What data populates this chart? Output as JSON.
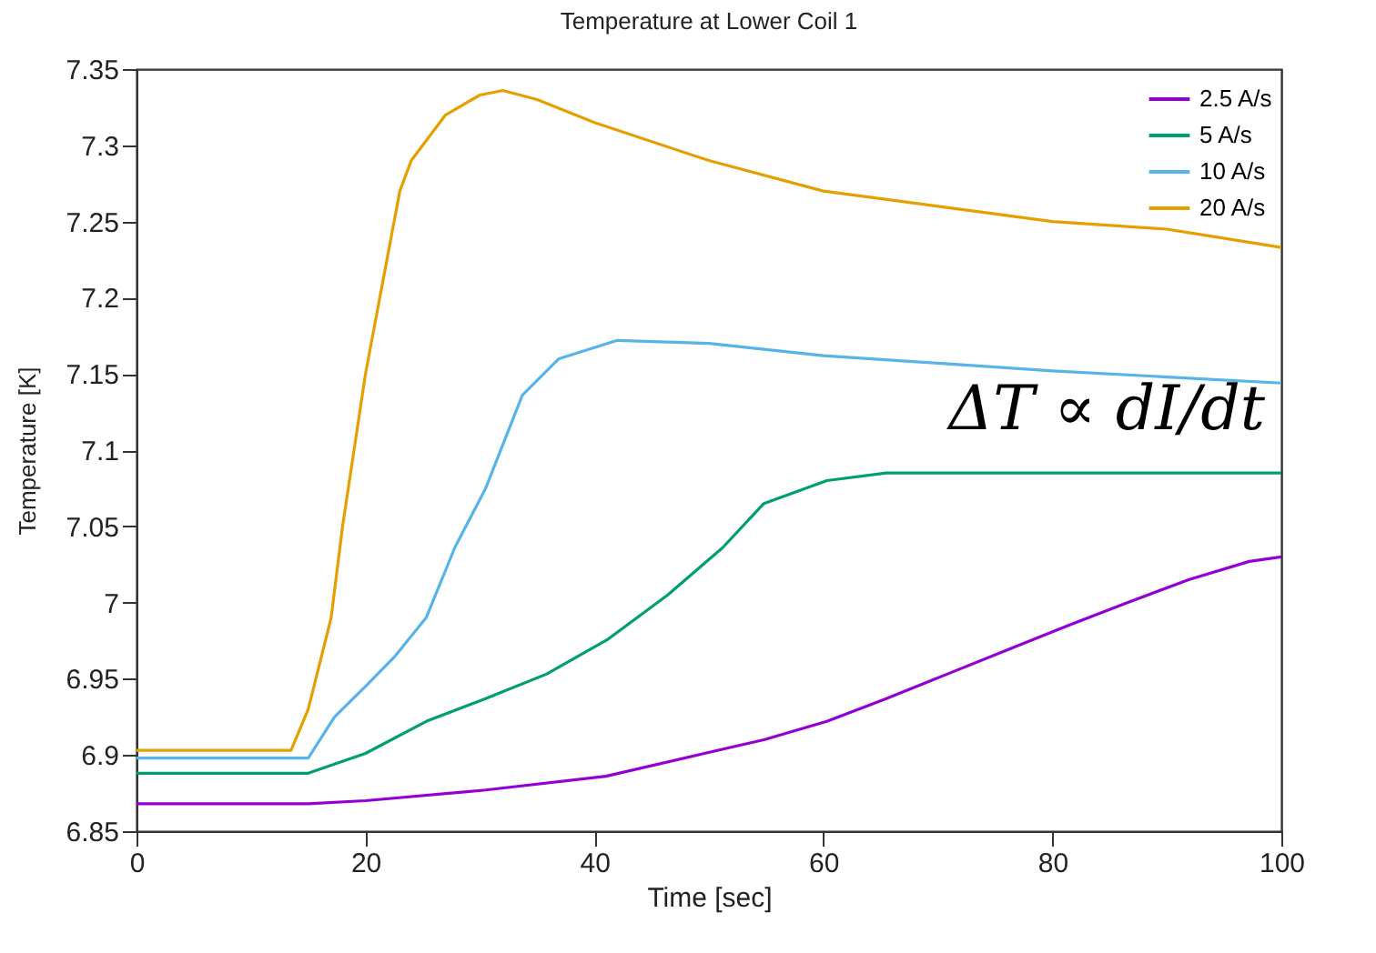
{
  "chart_data": {
    "type": "line",
    "title": "Temperature at Lower Coil 1",
    "xlabel": "Time [sec]",
    "ylabel": "Temperature [K]",
    "xlim": [
      0,
      100
    ],
    "xticks": [
      0,
      20,
      40,
      60,
      80,
      100
    ],
    "ylim": [
      6.85,
      7.35
    ],
    "yticks": [
      6.85,
      6.9,
      6.95,
      7,
      7.05,
      7.1,
      7.15,
      7.2,
      7.25,
      7.3,
      7.35
    ],
    "grid": false,
    "legend": "top right",
    "marker": "none",
    "line_style": "solid",
    "annotations": [
      "ΔT ∝ dI/dt"
    ],
    "series": [
      {
        "name": "2.5 A/s",
        "color": "#9400d3",
        "x": [
          0,
          15,
          20,
          30.5,
          41,
          49.6,
          54.8,
          60.3,
          65.5,
          70.8,
          76.1,
          81.4,
          86.6,
          91.9,
          97.2,
          100
        ],
        "values": [
          6.868,
          6.868,
          6.87,
          6.877,
          6.886,
          6.901,
          6.91,
          6.922,
          6.937,
          6.953,
          6.969,
          6.985,
          7.0,
          7.015,
          7.027,
          7.03
        ]
      },
      {
        "name": "5 A/s",
        "color": "#009e73",
        "x": [
          0,
          15,
          20,
          25.3,
          30.5,
          35.8,
          41.2,
          46.4,
          51.2,
          54.8,
          60.3,
          65.5,
          80,
          100
        ],
        "values": [
          6.888,
          6.888,
          6.901,
          6.922,
          6.937,
          6.953,
          6.976,
          7.005,
          7.036,
          7.065,
          7.08,
          7.085,
          7.085,
          7.085
        ]
      },
      {
        "name": "10 A/s",
        "color": "#56b4e9",
        "x": [
          0,
          15,
          17.3,
          20,
          22.6,
          25.3,
          27.8,
          30.5,
          33.7,
          36.9,
          42,
          50,
          60,
          70,
          80,
          90,
          100
        ],
        "values": [
          6.898,
          6.898,
          6.925,
          6.945,
          6.965,
          6.99,
          7.036,
          7.075,
          7.136,
          7.16,
          7.172,
          7.17,
          7.162,
          7.157,
          7.152,
          7.148,
          7.144
        ]
      },
      {
        "name": "20 A/s",
        "color": "#e69f00",
        "x": [
          0,
          13.5,
          15,
          17,
          18,
          19,
          20,
          22,
          23,
          24,
          25,
          27,
          30,
          32,
          35,
          40,
          50,
          60,
          70,
          80,
          90,
          100
        ],
        "values": [
          6.903,
          6.903,
          6.93,
          6.99,
          7.05,
          7.1,
          7.15,
          7.23,
          7.27,
          7.29,
          7.3,
          7.32,
          7.333,
          7.336,
          7.33,
          7.315,
          7.29,
          7.27,
          7.26,
          7.25,
          7.245,
          7.233
        ]
      }
    ]
  }
}
